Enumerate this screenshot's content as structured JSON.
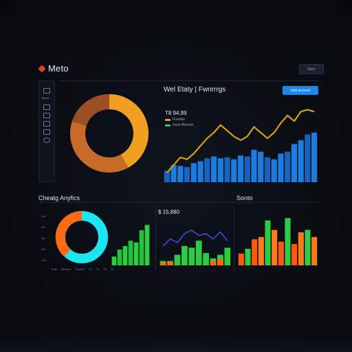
{
  "app": {
    "name": "Meto"
  },
  "header": {
    "top_button_label": "Save"
  },
  "sidebar": {
    "items": [
      {
        "icon": "doc-icon",
        "label": ""
      },
      {
        "icon": "menu-icon",
        "label": "Metro"
      },
      {
        "icon": "grid-icon",
        "label": ""
      },
      {
        "icon": "list-icon",
        "label": ""
      },
      {
        "icon": "monitor-icon",
        "label": ""
      },
      {
        "icon": "folder-icon",
        "label": ""
      },
      {
        "icon": "settings-icon",
        "label": ""
      }
    ]
  },
  "top_panel": {
    "title": "Wel Etaty | Fwnrrrgs",
    "cta_label": "Add account",
    "stat_value": "T8 94.99",
    "legend": [
      {
        "label": "Froetike",
        "color": "#e6a23c"
      },
      {
        "label": "Sees Mrrrerer",
        "color": "#2ecc71"
      }
    ]
  },
  "donut_top": {
    "colors": [
      "#f0a020",
      "#c86a2a",
      "#9c4f24"
    ],
    "values": [
      42,
      38,
      20
    ]
  },
  "bottom_left": {
    "title": "Cheatg Anyfics",
    "ticks": [
      "1M",
      "5M",
      "5M",
      "5M",
      "10M"
    ],
    "legend": [
      "Trole",
      "Rtvsone",
      "Promer",
      "T3",
      "T5",
      "T5",
      "T8"
    ]
  },
  "bottom_mid": {
    "stat_value": "$ 15,880"
  },
  "bottom_right": {
    "title": "Sonto"
  },
  "colors": {
    "accent_blue": "#1e88e5",
    "bar_blue": "#1565c0",
    "line_gold": "#d4a017",
    "green": "#2ecc40",
    "orange": "#ff6a13",
    "cyan": "#19e6f0"
  },
  "chart_data": [
    {
      "type": "bar",
      "title": "",
      "series": [
        {
          "values": [
            12,
            18,
            17,
            16,
            20,
            22,
            25,
            27,
            25,
            26,
            24,
            28,
            27,
            34,
            32,
            26,
            24,
            30,
            32,
            40,
            44,
            50,
            52
          ]
        }
      ],
      "line_overlay": [
        10,
        18,
        26,
        24,
        30,
        38,
        46,
        52,
        60,
        54,
        48,
        44,
        48,
        58,
        52,
        46,
        52,
        62,
        70,
        64,
        74,
        76,
        74
      ],
      "ylim": [
        0,
        80
      ]
    },
    {
      "type": "bar",
      "series": [
        {
          "values": [
            10,
            18,
            22,
            28,
            26,
            40,
            46
          ]
        }
      ],
      "ylim": [
        0,
        50
      ]
    },
    {
      "type": "bar",
      "series": [
        {
          "name": "",
          "values": [
            5,
            5,
            12,
            22,
            20,
            28,
            14,
            8,
            12,
            20
          ]
        },
        {
          "name": "",
          "values": [
            3,
            4,
            0,
            0,
            0,
            0,
            0,
            5,
            7,
            0
          ]
        }
      ],
      "line_overlay": [
        22,
        30,
        26,
        36,
        40,
        34,
        36,
        30,
        38,
        28
      ],
      "ylim": [
        0,
        50
      ]
    },
    {
      "type": "bar",
      "series": [
        {
          "values": [
            10,
            14,
            22,
            24,
            38,
            30,
            20,
            40,
            18,
            28,
            30,
            24
          ]
        }
      ],
      "ylim": [
        0,
        50
      ]
    }
  ]
}
